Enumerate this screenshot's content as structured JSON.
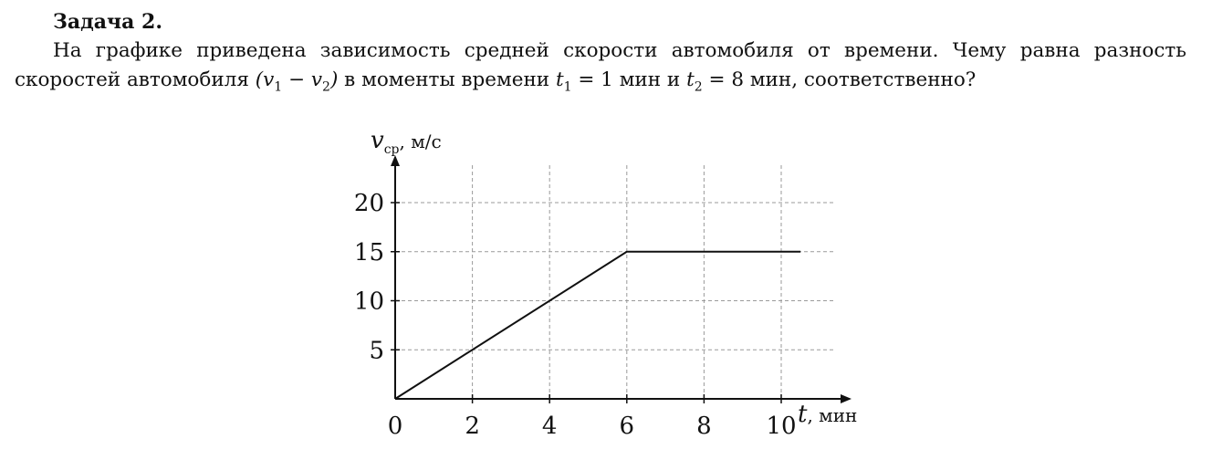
{
  "problem": {
    "title": "Задача 2.",
    "text_intro": "На графике приведена зависимость средней скорости автомобиля от времени. Чему равна разность скоростей автомобиля ",
    "diff_expr": "(v",
    "diff_sub1": "1",
    "diff_minus": " − v",
    "diff_sub2": "2",
    "diff_close": ")",
    "text_moments": " в моменты времени ",
    "t1_var": "t",
    "t1_sub": "1",
    "t1_eq": " = 1 мин и ",
    "t2_var": "t",
    "t2_sub": "2",
    "t2_eq": " = 8 мин, соответственно?"
  },
  "chart_data": {
    "type": "line",
    "y_axis_label": {
      "var": "v",
      "sub": "ср",
      "unit": ", м/с"
    },
    "x_axis_label": {
      "var": "t",
      "unit": ", мин"
    },
    "xlim": [
      0,
      10
    ],
    "ylim": [
      0,
      20
    ],
    "x_ticks": [
      "0",
      "2",
      "4",
      "6",
      "8",
      "10"
    ],
    "y_ticks": [
      "5",
      "10",
      "15",
      "20"
    ],
    "grid": true,
    "grid_style": "dashed",
    "line_color": "#111111",
    "grid_color": "#9a9a9a",
    "series": [
      {
        "x": [
          0,
          6,
          10.5
        ],
        "y": [
          0,
          15,
          15
        ]
      }
    ]
  }
}
